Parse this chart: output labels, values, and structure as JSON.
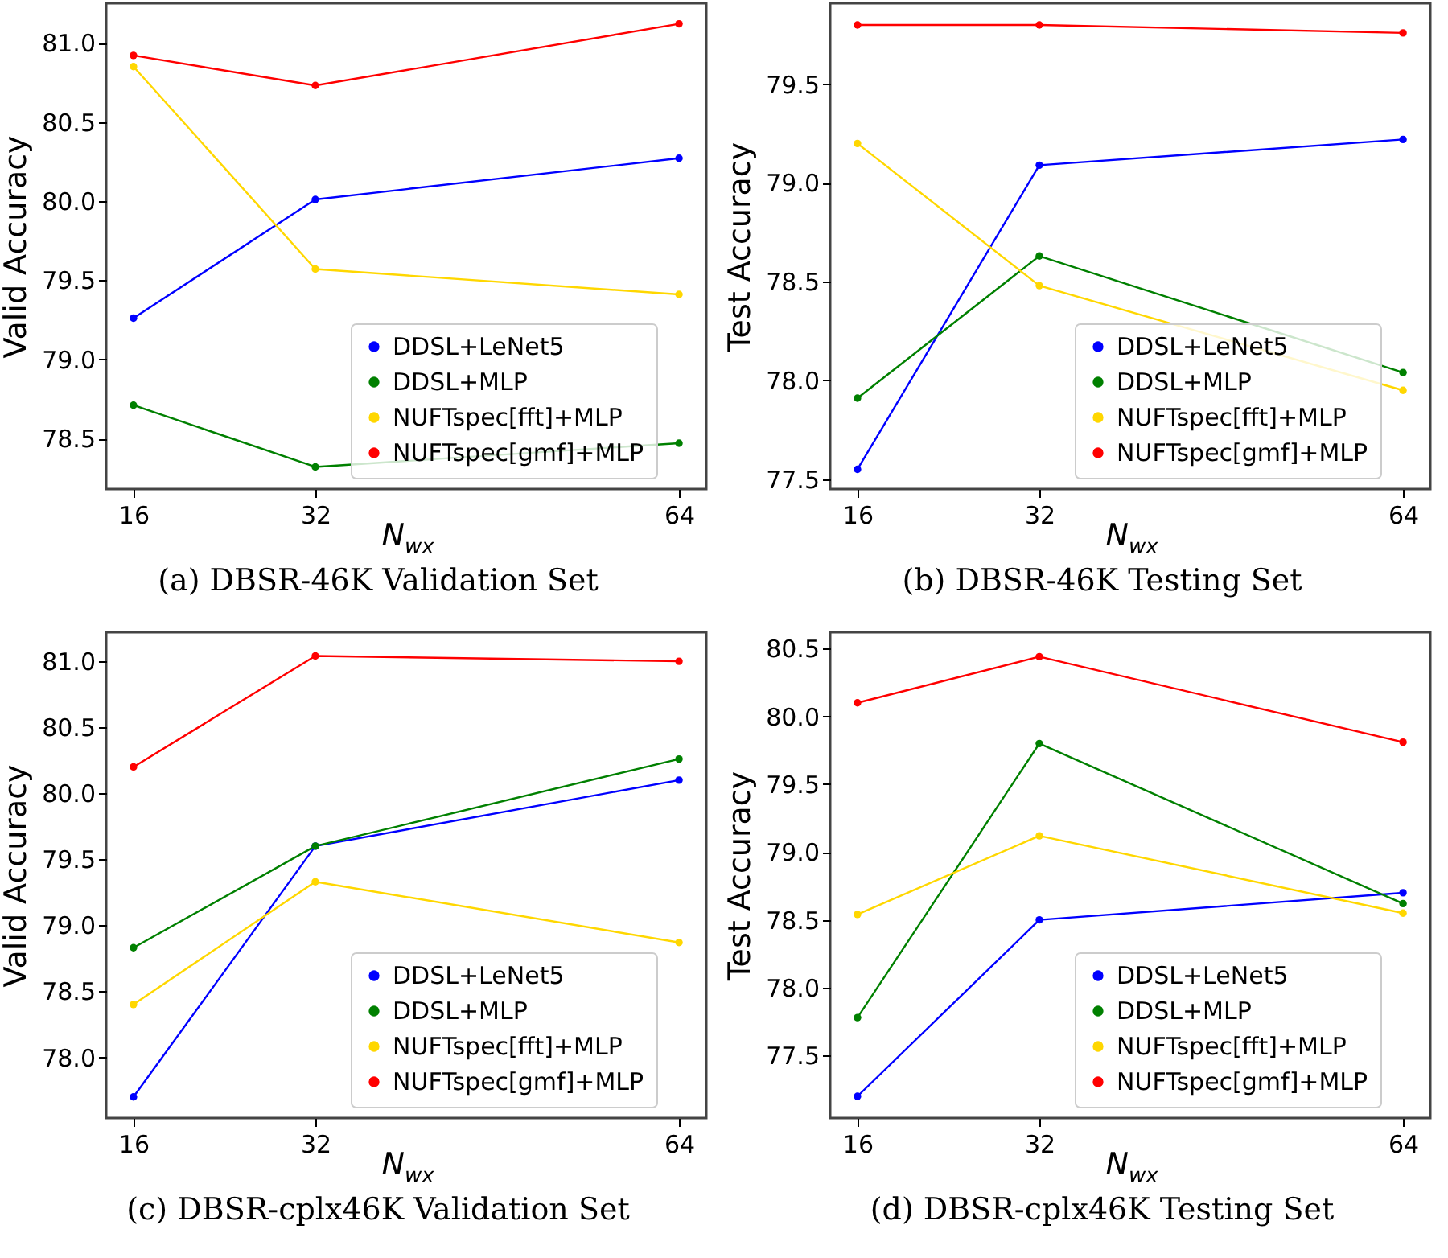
{
  "chart_data": [
    {
      "type": "line",
      "title": "(a) DBSR-46K Validation Set",
      "xlabel": "N$_{wx}$",
      "ylabel": "Valid Accuracy",
      "x": [
        16,
        32,
        64
      ],
      "xlim": [
        13.6,
        66.4
      ],
      "xticks": [
        16,
        32,
        64
      ],
      "ylim": [
        78.18,
        81.25
      ],
      "yticks": [
        78.5,
        {
          "value": 79,
          "label": "79.0"
        },
        79.5,
        {
          "value": 80,
          "label": "80.0"
        },
        80.5,
        {
          "value": 81,
          "label": "81.0"
        }
      ],
      "grid": false,
      "legend": "bottom right",
      "marker": "circle",
      "line_style": "solid",
      "series": [
        {
          "name": "DDSL+LeNet5",
          "color": "#0000ff",
          "values": [
            79.26,
            80.01,
            80.27
          ]
        },
        {
          "name": "DDSL+MLP",
          "color": "#008000",
          "values": [
            78.71,
            78.32,
            78.47
          ]
        },
        {
          "name": "NUFTspec[fft]+MLP",
          "color": "#ffd700",
          "values": [
            80.85,
            79.57,
            79.41
          ]
        },
        {
          "name": "NUFTspec[gmf]+MLP",
          "color": "#ff0000",
          "values": [
            80.92,
            80.73,
            81.12
          ]
        }
      ]
    },
    {
      "type": "line",
      "title": "(b) DBSR-46K Testing Set",
      "xlabel": "N$_{wx}$",
      "ylabel": "Test Accuracy",
      "x": [
        16,
        32,
        64
      ],
      "xlim": [
        13.6,
        66.4
      ],
      "xticks": [
        16,
        32,
        64
      ],
      "ylim": [
        77.45,
        79.91
      ],
      "yticks": [
        77.5,
        {
          "value": 78,
          "label": "78.0"
        },
        78.5,
        {
          "value": 79,
          "label": "79.0"
        },
        79.5
      ],
      "grid": false,
      "legend": "bottom right",
      "marker": "circle",
      "line_style": "solid",
      "series": [
        {
          "name": "DDSL+LeNet5",
          "color": "#0000ff",
          "values": [
            77.55,
            79.09,
            79.22
          ]
        },
        {
          "name": "DDSL+MLP",
          "color": "#008000",
          "values": [
            77.91,
            78.63,
            78.04
          ]
        },
        {
          "name": "NUFTspec[fft]+MLP",
          "color": "#ffd700",
          "values": [
            79.2,
            78.48,
            77.95
          ]
        },
        {
          "name": "NUFTspec[gmf]+MLP",
          "color": "#ff0000",
          "values": [
            79.8,
            79.8,
            79.76
          ]
        }
      ]
    },
    {
      "type": "line",
      "title": "(c) DBSR-cplx46K Validation Set",
      "xlabel": "N$_{wx}$",
      "ylabel": "Valid Accuracy",
      "x": [
        16,
        32,
        64
      ],
      "xlim": [
        13.6,
        66.4
      ],
      "xticks": [
        16,
        32,
        64
      ],
      "ylim": [
        77.54,
        81.22
      ],
      "yticks": [
        {
          "value": 78,
          "label": "78.0"
        },
        78.5,
        {
          "value": 79,
          "label": "79.0"
        },
        79.5,
        {
          "value": 80,
          "label": "80.0"
        },
        80.5,
        {
          "value": 81,
          "label": "81.0"
        }
      ],
      "grid": false,
      "legend": "bottom right",
      "marker": "circle",
      "line_style": "solid",
      "series": [
        {
          "name": "DDSL+LeNet5",
          "color": "#0000ff",
          "values": [
            77.7,
            79.6,
            80.1
          ]
        },
        {
          "name": "DDSL+MLP",
          "color": "#008000",
          "values": [
            78.83,
            79.6,
            80.26
          ]
        },
        {
          "name": "NUFTspec[fft]+MLP",
          "color": "#ffd700",
          "values": [
            78.4,
            79.33,
            78.87
          ]
        },
        {
          "name": "NUFTspec[gmf]+MLP",
          "color": "#ff0000",
          "values": [
            80.2,
            81.04,
            81.0
          ]
        }
      ]
    },
    {
      "type": "line",
      "title": "(d) DBSR-cplx46K Testing Set",
      "xlabel": "N$_{wx}$",
      "ylabel": "Test Accuracy",
      "x": [
        16,
        32,
        64
      ],
      "xlim": [
        13.6,
        66.4
      ],
      "xticks": [
        16,
        32,
        64
      ],
      "ylim": [
        77.04,
        80.62
      ],
      "yticks": [
        77.5,
        {
          "value": 78,
          "label": "78.0"
        },
        78.5,
        {
          "value": 79,
          "label": "79.0"
        },
        79.5,
        {
          "value": 80,
          "label": "80.0"
        },
        80.5
      ],
      "grid": false,
      "legend": "bottom right",
      "marker": "circle",
      "line_style": "solid",
      "series": [
        {
          "name": "DDSL+LeNet5",
          "color": "#0000ff",
          "values": [
            77.2,
            78.5,
            78.7
          ]
        },
        {
          "name": "DDSL+MLP",
          "color": "#008000",
          "values": [
            77.78,
            79.8,
            78.62
          ]
        },
        {
          "name": "NUFTspec[fft]+MLP",
          "color": "#ffd700",
          "values": [
            78.54,
            79.12,
            78.55
          ]
        },
        {
          "name": "NUFTspec[gmf]+MLP",
          "color": "#ff0000",
          "values": [
            80.1,
            80.44,
            79.81
          ]
        }
      ]
    }
  ]
}
